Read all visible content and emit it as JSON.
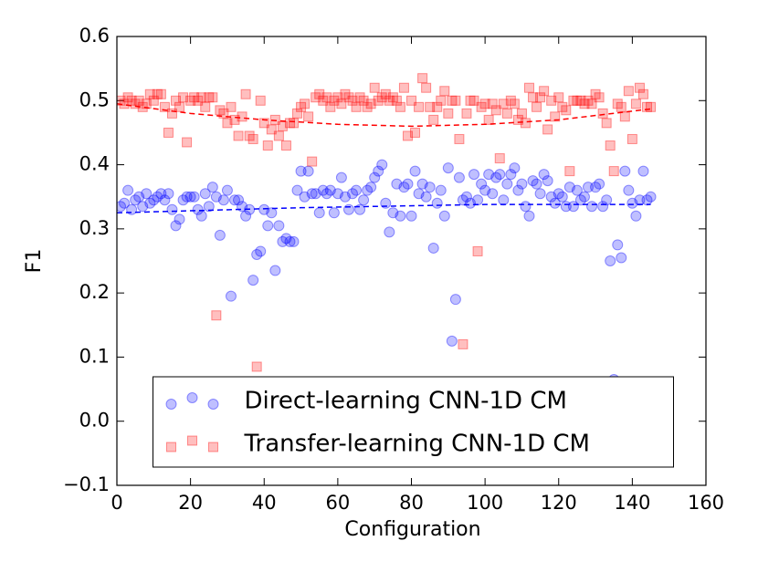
{
  "chart_data": {
    "type": "scatter",
    "x_label": "Configuration",
    "y_label": "F1",
    "xlim": [
      0,
      160
    ],
    "xticks": [
      0,
      20,
      40,
      60,
      80,
      100,
      120,
      140,
      160
    ],
    "ylim": [
      -0.1,
      0.6
    ],
    "yticks": [
      {
        "value": -0.1,
        "label": "−0.1"
      },
      {
        "value": 0,
        "label": "0.0"
      },
      0.1,
      0.2,
      0.3,
      0.4,
      0.5,
      0.6
    ],
    "legend": "lower center",
    "alpha": 0.25,
    "x": [
      1,
      2,
      3,
      4,
      5,
      6,
      7,
      8,
      9,
      10,
      11,
      12,
      13,
      14,
      15,
      16,
      17,
      18,
      19,
      20,
      21,
      22,
      23,
      24,
      25,
      26,
      27,
      28,
      29,
      30,
      31,
      32,
      33,
      34,
      35,
      36,
      37,
      38,
      39,
      40,
      41,
      42,
      43,
      44,
      45,
      46,
      47,
      48,
      49,
      50,
      51,
      52,
      53,
      54,
      55,
      56,
      57,
      58,
      59,
      60,
      61,
      62,
      63,
      64,
      65,
      66,
      67,
      68,
      69,
      70,
      71,
      72,
      73,
      74,
      75,
      76,
      77,
      78,
      79,
      80,
      81,
      82,
      83,
      84,
      85,
      86,
      87,
      88,
      89,
      90,
      91,
      92,
      93,
      94,
      95,
      96,
      97,
      98,
      99,
      100,
      101,
      102,
      103,
      104,
      105,
      106,
      107,
      108,
      109,
      110,
      111,
      112,
      113,
      114,
      115,
      116,
      117,
      118,
      119,
      120,
      121,
      122,
      123,
      124,
      125,
      126,
      127,
      128,
      129,
      130,
      131,
      132,
      133,
      134,
      135,
      136,
      137,
      138,
      139,
      140,
      141,
      142,
      143,
      144,
      145
    ],
    "series": [
      {
        "name": "Direct-learning CNN-1D CM",
        "color": "#0000ff",
        "marker": "circle",
        "values": [
          0.335,
          0.34,
          0.36,
          0.33,
          0.345,
          0.35,
          0.335,
          0.355,
          0.34,
          0.345,
          0.35,
          0.355,
          0.345,
          0.355,
          0.33,
          0.305,
          0.315,
          0.345,
          0.35,
          0.35,
          0.35,
          0.33,
          0.32,
          0.355,
          0.335,
          0.365,
          0.35,
          0.29,
          0.345,
          0.36,
          0.195,
          0.345,
          0.345,
          0.335,
          0.32,
          0.33,
          0.22,
          0.26,
          0.265,
          0.33,
          0.305,
          0.325,
          0.235,
          0.305,
          0.28,
          0.285,
          0.28,
          0.28,
          0.36,
          0.39,
          0.35,
          0.39,
          0.355,
          0.355,
          0.325,
          0.36,
          0.355,
          0.36,
          0.325,
          0.355,
          0.38,
          0.35,
          0.33,
          0.355,
          0.36,
          0.33,
          0.345,
          0.36,
          0.365,
          0.38,
          0.39,
          0.4,
          0.34,
          0.295,
          0.325,
          0.37,
          0.32,
          0.365,
          0.37,
          0.32,
          0.39,
          0.355,
          0.37,
          0.35,
          0.365,
          0.27,
          0.34,
          0.36,
          0.32,
          0.395,
          0.125,
          0.19,
          0.38,
          0.345,
          0.35,
          0.34,
          0.385,
          0.345,
          0.37,
          0.36,
          0.385,
          0.355,
          0.38,
          0.385,
          0.345,
          0.37,
          0.385,
          0.395,
          0.36,
          0.37,
          0.335,
          0.32,
          0.375,
          0.37,
          0.355,
          0.385,
          0.375,
          0.35,
          0.34,
          0.355,
          0.35,
          0.335,
          0.365,
          0.335,
          0.36,
          0.345,
          0.35,
          0.365,
          0.335,
          0.365,
          0.37,
          0.335,
          0.345,
          0.25,
          0.065,
          0.275,
          0.255,
          0.39,
          0.36,
          0.34,
          0.32,
          0.345,
          0.39,
          0.345,
          0.35
        ]
      },
      {
        "name": "Transfer-learning CNN-1D CM",
        "color": "#ff0000",
        "marker": "square",
        "values": [
          0.5,
          0.495,
          0.505,
          0.5,
          0.495,
          0.5,
          0.49,
          0.495,
          0.51,
          0.5,
          0.51,
          0.51,
          0.49,
          0.45,
          0.48,
          0.5,
          0.49,
          0.505,
          0.435,
          0.5,
          0.505,
          0.5,
          0.505,
          0.49,
          0.505,
          0.505,
          0.165,
          0.485,
          0.48,
          0.465,
          0.49,
          0.47,
          0.445,
          0.475,
          0.51,
          0.445,
          0.44,
          0.085,
          0.5,
          0.465,
          0.43,
          0.455,
          0.47,
          0.445,
          0.46,
          0.43,
          0.465,
          0.465,
          0.48,
          0.49,
          0.495,
          0.475,
          0.405,
          0.505,
          0.51,
          0.5,
          0.505,
          0.49,
          0.5,
          0.505,
          0.495,
          0.51,
          0.505,
          0.5,
          0.49,
          0.505,
          0.5,
          0.49,
          0.495,
          0.52,
          0.5,
          0.505,
          0.51,
          0.5,
          0.505,
          0.5,
          0.49,
          0.52,
          0.445,
          0.5,
          0.45,
          0.49,
          0.535,
          0.52,
          0.49,
          0.47,
          0.49,
          0.5,
          0.515,
          0.48,
          0.5,
          0.5,
          0.44,
          0.12,
          0.48,
          0.5,
          0.5,
          0.265,
          0.49,
          0.495,
          0.47,
          0.495,
          0.485,
          0.41,
          0.495,
          0.48,
          0.5,
          0.495,
          0.47,
          0.48,
          0.465,
          0.52,
          0.505,
          0.49,
          0.505,
          0.515,
          0.455,
          0.5,
          0.475,
          0.505,
          0.49,
          0.485,
          0.39,
          0.5,
          0.5,
          0.5,
          0.495,
          0.5,
          0.495,
          0.51,
          0.505,
          0.48,
          0.465,
          0.43,
          0.39,
          0.495,
          0.49,
          0.475,
          0.515,
          0.44,
          0.495,
          0.52,
          0.51,
          0.49,
          0.49
        ]
      }
    ],
    "trend_lines": [
      {
        "color": "#0000ff",
        "x": [
          0,
          50,
          100,
          145
        ],
        "values": [
          0.325,
          0.333,
          0.338,
          0.338
        ]
      },
      {
        "color": "#ff0000",
        "x": [
          0,
          20,
          40,
          60,
          80,
          100,
          120,
          145
        ],
        "values": [
          0.495,
          0.48,
          0.47,
          0.463,
          0.46,
          0.463,
          0.47,
          0.487
        ]
      }
    ]
  }
}
